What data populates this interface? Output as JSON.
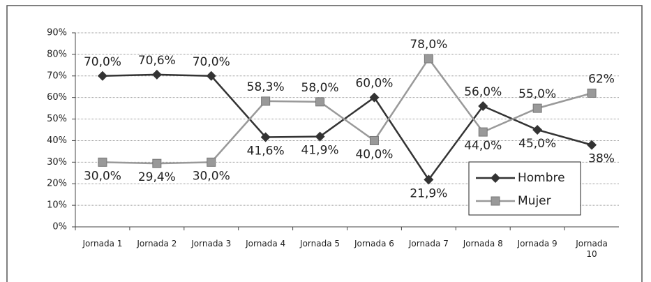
{
  "chart_data": {
    "type": "line",
    "categories": [
      "Jornada 1",
      "Jornada 2",
      "Jornada 3",
      "Jornada 4",
      "Jornada 5",
      "Jornada 6",
      "Jornada 7",
      "Jornada 8",
      "Jornada 9",
      "Jornada 10"
    ],
    "series": [
      {
        "name": "Hombre",
        "color": "#333333",
        "marker": "diamond",
        "values": [
          70.0,
          70.6,
          70.0,
          41.6,
          41.9,
          60.0,
          21.9,
          56.0,
          45.0,
          38
        ],
        "value_labels": [
          "70,0%",
          "70,6%",
          "70,0%",
          "41,6%",
          "41,9%",
          "60,0%",
          "21,9%",
          "56,0%",
          "45,0%",
          "38%"
        ]
      },
      {
        "name": "Mujer",
        "color": "#999999",
        "marker": "square",
        "values": [
          30.0,
          29.4,
          30.0,
          58.3,
          58.0,
          40.0,
          78.0,
          44.0,
          55.0,
          62
        ],
        "value_labels": [
          "30,0%",
          "29,4%",
          "30,0%",
          "58,3%",
          "58,0%",
          "40,0%",
          "78,0%",
          "44,0%",
          "55,0%",
          "62%"
        ]
      }
    ],
    "ylim": [
      0,
      90
    ],
    "yticks": [
      {
        "value": 0,
        "label": "0%"
      },
      {
        "value": 10,
        "label": "10%"
      },
      {
        "value": 20,
        "label": "20%"
      },
      {
        "value": 30,
        "label": "30%"
      },
      {
        "value": 40,
        "label": "40%"
      },
      {
        "value": 50,
        "label": "50%"
      },
      {
        "value": 60,
        "label": "60%"
      },
      {
        "value": 70,
        "label": "70%"
      },
      {
        "value": 80,
        "label": "80%"
      },
      {
        "value": 90,
        "label": "90%"
      }
    ],
    "grid": true
  }
}
